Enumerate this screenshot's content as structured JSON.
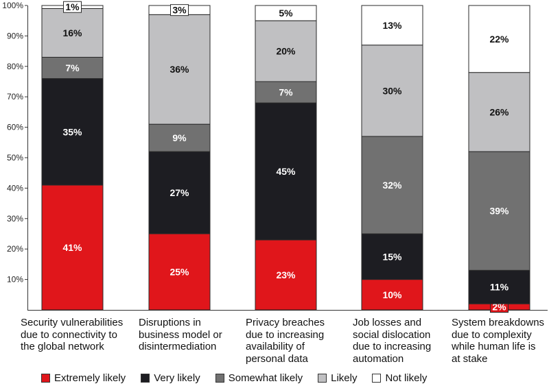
{
  "chart_data": {
    "type": "stacked-bar",
    "ylim": [
      0,
      100
    ],
    "yticks": [
      "10%",
      "20%",
      "30%",
      "40%",
      "50%",
      "60%",
      "70%",
      "80%",
      "90%",
      "100%"
    ],
    "categories": [
      [
        "Security vulnerabilities",
        "due to connectivity to",
        "the global network"
      ],
      [
        "Disruptions in",
        "business model or",
        "disintermediation"
      ],
      [
        "Privacy breaches",
        "due to increasing",
        "availability of",
        "personal data"
      ],
      [
        "Job losses and",
        "social dislocation",
        "due to increasing",
        "automation"
      ],
      [
        "System breakdowns",
        "due to complexity",
        "while human life is",
        "at stake"
      ]
    ],
    "series": [
      {
        "name": "Extremely likely",
        "color": "#e0161b",
        "values": [
          41,
          25,
          23,
          10,
          2
        ],
        "labels": [
          "41%",
          "25%",
          "23%",
          "10%",
          "2%"
        ]
      },
      {
        "name": "Very likely",
        "color": "#1d1d22",
        "values": [
          35,
          27,
          45,
          15,
          11
        ],
        "labels": [
          "35%",
          "27%",
          "45%",
          "15%",
          "11%"
        ]
      },
      {
        "name": "Somewhat likely",
        "color": "#717171",
        "values": [
          7,
          9,
          7,
          32,
          39
        ],
        "labels": [
          "7%",
          "9%",
          "7%",
          "32%",
          "39%"
        ]
      },
      {
        "name": "Likely",
        "color": "#c0c0c2",
        "values": [
          16,
          36,
          20,
          30,
          26
        ],
        "labels": [
          "16%",
          "36%",
          "20%",
          "30%",
          "26%"
        ]
      },
      {
        "name": "Not likely",
        "color": "#ffffff",
        "values": [
          1,
          3,
          5,
          13,
          22
        ],
        "labels": [
          "1%",
          "3%",
          "5%",
          "13%",
          "22%"
        ]
      }
    ]
  }
}
